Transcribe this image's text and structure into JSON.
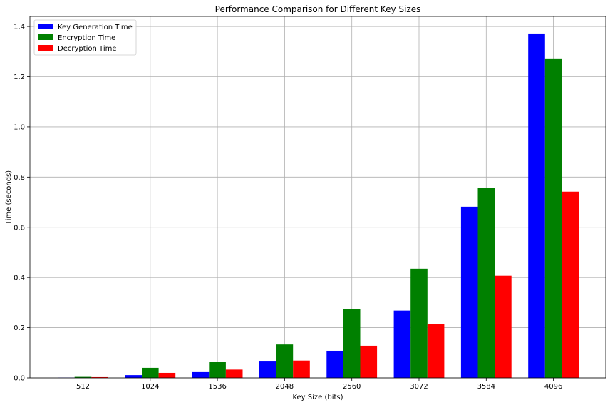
{
  "chart_data": {
    "type": "bar",
    "title": "Performance Comparison for Different Key Sizes",
    "xlabel": "Key Size (bits)",
    "ylabel": "Time (seconds)",
    "categories": [
      "512",
      "1024",
      "1536",
      "2048",
      "2560",
      "3072",
      "3584",
      "4096"
    ],
    "ylim": [
      0,
      1.44
    ],
    "yticks": [
      "0.0",
      "0.2",
      "0.4",
      "0.6",
      "0.8",
      "1.0",
      "1.2",
      "1.4"
    ],
    "grid": true,
    "legend_position": "top-left",
    "series": [
      {
        "name": "Key Generation Time",
        "color": "#0000ff",
        "values": [
          0.001,
          0.011,
          0.023,
          0.068,
          0.108,
          0.268,
          0.682,
          1.372
        ]
      },
      {
        "name": "Encryption Time",
        "color": "#008000",
        "values": [
          0.004,
          0.04,
          0.063,
          0.133,
          0.273,
          0.435,
          0.757,
          1.27
        ]
      },
      {
        "name": "Decryption Time",
        "color": "#ff0000",
        "values": [
          0.003,
          0.02,
          0.033,
          0.069,
          0.128,
          0.213,
          0.407,
          0.742
        ]
      }
    ]
  }
}
